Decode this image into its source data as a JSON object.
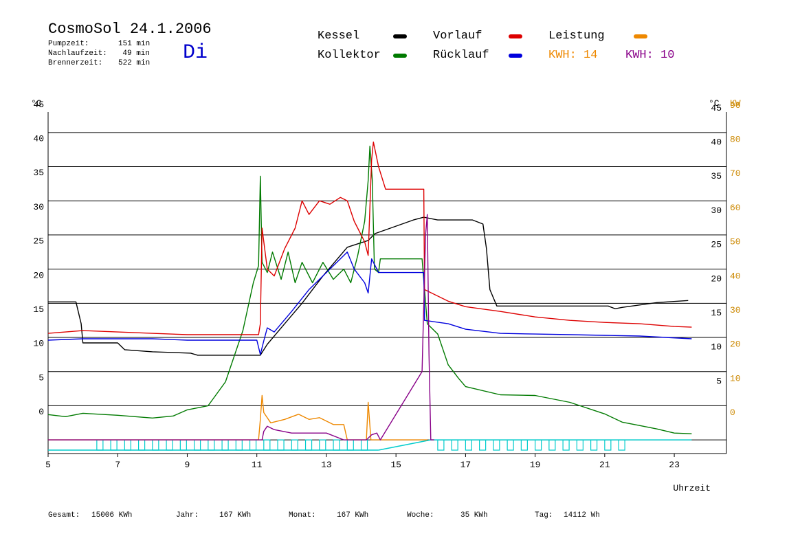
{
  "header": {
    "title": "CosmoSol 24.1.2006",
    "day": "Di",
    "stats": [
      {
        "label": "Pumpzeit:",
        "value": "151 min"
      },
      {
        "label": "Nachlaufzeit:",
        "value": "49 min"
      },
      {
        "label": "Brennerzeit:",
        "value": "522 min"
      }
    ]
  },
  "legend": {
    "kessel": "Kessel",
    "kollektor": "Kollektor",
    "vorlauf": "Vorlauf",
    "ruecklauf": "Rücklauf",
    "leistung": "Leistung",
    "kwh_orange": "KWH: 14",
    "kwh_purple": "KWH: 10"
  },
  "colors": {
    "kessel": "#000000",
    "kollektor": "#007a00",
    "vorlauf": "#dd0000",
    "ruecklauf": "#0000dd",
    "leistung": "#ee8800",
    "purple": "#880088",
    "cyan": "#00cccc"
  },
  "footer": {
    "gesamt_label": "Gesamt:",
    "gesamt_value": "15006 KWh",
    "jahr_label": "Jahr:",
    "jahr_value": "167 KWh",
    "monat_label": "Monat:",
    "monat_value": "167 KWh",
    "woche_label": "Woche:",
    "woche_value": "35 KWh",
    "tag_label": "Tag:",
    "tag_value": "14112 Wh"
  },
  "chart_data": {
    "type": "line",
    "title": "CosmoSol 24.1.2006",
    "xlabel": "Uhrzeit",
    "ylabel_left": "°C",
    "ylabel_right_c": "°C",
    "ylabel_right_kw": "KW",
    "xlim": [
      5,
      24.5
    ],
    "ylim": [
      -2,
      48
    ],
    "y2lim": [
      -4,
      96
    ],
    "x_ticks": [
      5,
      7,
      9,
      11,
      13,
      15,
      17,
      19,
      21,
      23
    ],
    "y_ticks_left": [
      0,
      5,
      10,
      15,
      20,
      25,
      30,
      35,
      40,
      45
    ],
    "y_ticks_right": [
      5,
      10,
      15,
      20,
      25,
      30,
      35,
      40,
      45
    ],
    "y2_ticks": [
      0,
      10,
      20,
      30,
      40,
      50,
      60,
      70,
      80,
      90
    ],
    "grid_y": true,
    "series": [
      {
        "name": "Kessel",
        "color_key": "kessel",
        "points": [
          [
            5,
            20.2
          ],
          [
            5.8,
            20.2
          ],
          [
            5.95,
            17
          ],
          [
            6,
            14.2
          ],
          [
            7,
            14.2
          ],
          [
            7.2,
            13.2
          ],
          [
            8,
            12.9
          ],
          [
            9.1,
            12.7
          ],
          [
            9.3,
            12.4
          ],
          [
            10.6,
            12.4
          ],
          [
            11.1,
            12.4
          ],
          [
            11.3,
            14
          ],
          [
            11.8,
            17
          ],
          [
            12.3,
            20
          ],
          [
            12.9,
            24
          ],
          [
            13.6,
            28.2
          ],
          [
            14.2,
            29.2
          ],
          [
            14.4,
            30.2
          ],
          [
            15.5,
            32.2
          ],
          [
            15.8,
            32.6
          ],
          [
            16.2,
            32.2
          ],
          [
            17.2,
            32.2
          ],
          [
            17.5,
            31.6
          ],
          [
            17.6,
            28
          ],
          [
            17.7,
            22
          ],
          [
            17.9,
            19.6
          ],
          [
            21.1,
            19.6
          ],
          [
            21.3,
            19.2
          ],
          [
            21.5,
            19.4
          ],
          [
            22.5,
            20.1
          ],
          [
            23.4,
            20.4
          ]
        ]
      },
      {
        "name": "Kollektor",
        "color_key": "kollektor",
        "points": [
          [
            5,
            3.7
          ],
          [
            5.5,
            3.4
          ],
          [
            6,
            3.9
          ],
          [
            7,
            3.6
          ],
          [
            8,
            3.2
          ],
          [
            8.6,
            3.5
          ],
          [
            9,
            4.4
          ],
          [
            9.6,
            5
          ],
          [
            10.1,
            8.5
          ],
          [
            10.6,
            16
          ],
          [
            10.9,
            23
          ],
          [
            11.05,
            25.5
          ],
          [
            11.1,
            38.6
          ],
          [
            11.15,
            26
          ],
          [
            11.3,
            24.5
          ],
          [
            11.45,
            27.5
          ],
          [
            11.7,
            23.5
          ],
          [
            11.9,
            27.5
          ],
          [
            12.1,
            23
          ],
          [
            12.3,
            26
          ],
          [
            12.6,
            23
          ],
          [
            12.9,
            26
          ],
          [
            13.2,
            23.5
          ],
          [
            13.5,
            25
          ],
          [
            13.7,
            23
          ],
          [
            13.9,
            27
          ],
          [
            14.1,
            32
          ],
          [
            14.2,
            38
          ],
          [
            14.25,
            43
          ],
          [
            14.32,
            38
          ],
          [
            14.38,
            25
          ],
          [
            14.5,
            24.5
          ],
          [
            14.55,
            26.5
          ],
          [
            15.75,
            26.5
          ],
          [
            15.82,
            22
          ],
          [
            15.9,
            17
          ],
          [
            16.2,
            15.5
          ],
          [
            16.5,
            11
          ],
          [
            16.8,
            9
          ],
          [
            17,
            7.8
          ],
          [
            18,
            6.6
          ],
          [
            19,
            6.5
          ],
          [
            20,
            5.5
          ],
          [
            21,
            3.8
          ],
          [
            21.5,
            2.6
          ],
          [
            22,
            2.1
          ],
          [
            22.5,
            1.6
          ],
          [
            23,
            1
          ],
          [
            23.5,
            0.9
          ]
        ]
      },
      {
        "name": "Vorlauf",
        "color_key": "vorlauf",
        "points": [
          [
            5,
            15.6
          ],
          [
            6,
            16
          ],
          [
            7,
            15.8
          ],
          [
            8,
            15.6
          ],
          [
            9,
            15.4
          ],
          [
            11.05,
            15.4
          ],
          [
            11.1,
            17
          ],
          [
            11.15,
            31
          ],
          [
            11.3,
            25
          ],
          [
            11.5,
            24
          ],
          [
            11.8,
            28
          ],
          [
            12.1,
            31
          ],
          [
            12.3,
            35
          ],
          [
            12.5,
            33
          ],
          [
            12.8,
            35
          ],
          [
            13.1,
            34.5
          ],
          [
            13.4,
            35.5
          ],
          [
            13.6,
            35
          ],
          [
            13.8,
            32
          ],
          [
            14.1,
            29
          ],
          [
            14.2,
            27
          ],
          [
            14.3,
            41
          ],
          [
            14.35,
            43.6
          ],
          [
            14.5,
            40
          ],
          [
            14.7,
            36.7
          ],
          [
            15.8,
            36.7
          ],
          [
            15.82,
            22
          ],
          [
            16.5,
            20.3
          ],
          [
            17,
            19.5
          ],
          [
            18,
            18.8
          ],
          [
            19,
            18
          ],
          [
            20,
            17.5
          ],
          [
            21,
            17.2
          ],
          [
            22,
            17
          ],
          [
            23,
            16.6
          ],
          [
            23.5,
            16.5
          ]
        ]
      },
      {
        "name": "Rücklauf",
        "color_key": "ruecklauf",
        "points": [
          [
            5,
            14.6
          ],
          [
            6,
            14.8
          ],
          [
            8,
            14.8
          ],
          [
            9,
            14.6
          ],
          [
            11,
            14.6
          ],
          [
            11.1,
            12.5
          ],
          [
            11.2,
            14.5
          ],
          [
            11.3,
            16.4
          ],
          [
            11.5,
            15.8
          ],
          [
            12,
            18.8
          ],
          [
            12.5,
            22
          ],
          [
            13,
            24.5
          ],
          [
            13.4,
            26.5
          ],
          [
            13.6,
            27.5
          ],
          [
            13.8,
            25
          ],
          [
            14.1,
            23
          ],
          [
            14.2,
            21.5
          ],
          [
            14.3,
            26.5
          ],
          [
            14.45,
            25
          ],
          [
            14.5,
            24.5
          ],
          [
            15.8,
            24.5
          ],
          [
            15.82,
            17.5
          ],
          [
            16.5,
            17
          ],
          [
            17,
            16.2
          ],
          [
            18,
            15.6
          ],
          [
            19,
            15.5
          ],
          [
            20,
            15.4
          ],
          [
            21,
            15.3
          ],
          [
            22,
            15.2
          ],
          [
            23.5,
            14.8
          ]
        ]
      },
      {
        "name": "Leistung",
        "color_key": "leistung",
        "axis": "right",
        "points": [
          [
            5,
            0
          ],
          [
            11.05,
            0
          ],
          [
            11.1,
            6
          ],
          [
            11.15,
            13
          ],
          [
            11.2,
            8
          ],
          [
            11.4,
            5
          ],
          [
            11.8,
            6
          ],
          [
            12.2,
            7.5
          ],
          [
            12.5,
            6
          ],
          [
            12.8,
            6.5
          ],
          [
            13.2,
            4.5
          ],
          [
            13.5,
            4.5
          ],
          [
            13.6,
            0
          ],
          [
            14.15,
            0
          ],
          [
            14.2,
            11
          ],
          [
            14.28,
            0
          ],
          [
            15.9,
            0
          ]
        ]
      },
      {
        "name": "",
        "color_key": "purple",
        "axis": "right",
        "points": [
          [
            5,
            0
          ],
          [
            11.15,
            0
          ],
          [
            11.2,
            2.5
          ],
          [
            11.3,
            4
          ],
          [
            11.5,
            3
          ],
          [
            12,
            2
          ],
          [
            12.5,
            2
          ],
          [
            13,
            2
          ],
          [
            13.5,
            0
          ],
          [
            14.15,
            0
          ],
          [
            14.3,
            1.5
          ],
          [
            14.45,
            2
          ],
          [
            14.55,
            0
          ],
          [
            15.75,
            20
          ],
          [
            15.85,
            60
          ],
          [
            15.9,
            66
          ],
          [
            15.95,
            25
          ],
          [
            16,
            0
          ],
          [
            16.1,
            0
          ]
        ]
      }
    ]
  }
}
